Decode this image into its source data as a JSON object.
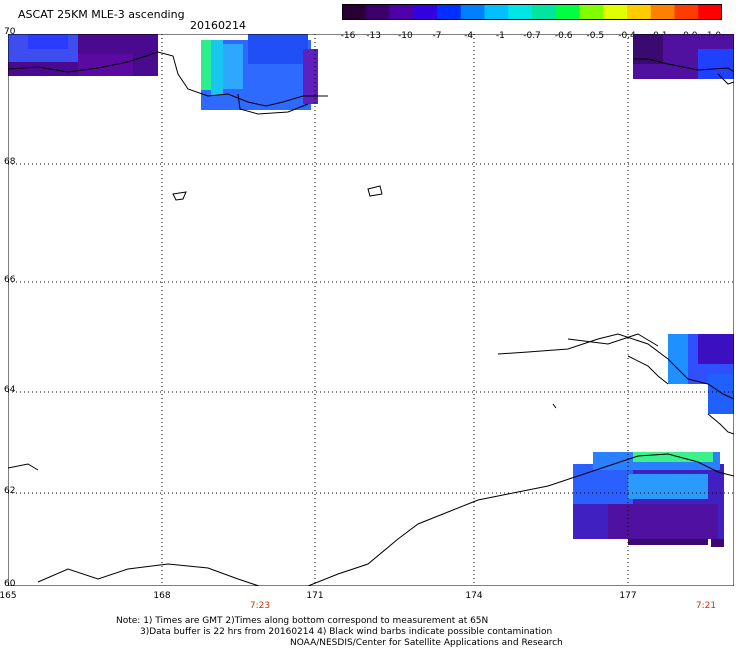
{
  "header": {
    "title": "ASCAT 25KM MLE-3 ascending",
    "date": "20160214"
  },
  "colorbar": {
    "colors": [
      "#2a0034",
      "#3d006b",
      "#4d00a8",
      "#3300e0",
      "#0030ff",
      "#0080ff",
      "#00c0ff",
      "#00e6e6",
      "#00e6a0",
      "#00ff40",
      "#80ff00",
      "#e0ff00",
      "#ffcc00",
      "#ff8000",
      "#ff3c00",
      "#ff0000"
    ],
    "labels": [
      "-16",
      "-13",
      "-10",
      "-7",
      "-4",
      "-1",
      "-0.7",
      "-0.6",
      "-0.5",
      "-0.4",
      "-0.1",
      "0.0",
      "1.0"
    ]
  },
  "map": {
    "lon_labels": [
      "165",
      "168",
      "171",
      "174",
      "177"
    ],
    "lat_labels": [
      "70",
      "68",
      "66",
      "64",
      "62",
      "60"
    ],
    "times": [
      "7:23",
      "7:21"
    ]
  },
  "notes": [
    "Note: 1) Times are GMT 2)Times along bottom correspond to measurement at 65N",
    "3)Data buffer is 22 hrs from 20160214 4) Black wind barbs indicate possible contamination",
    "NOAA/NESDIS/Center for Satellite Applications and Research"
  ]
}
